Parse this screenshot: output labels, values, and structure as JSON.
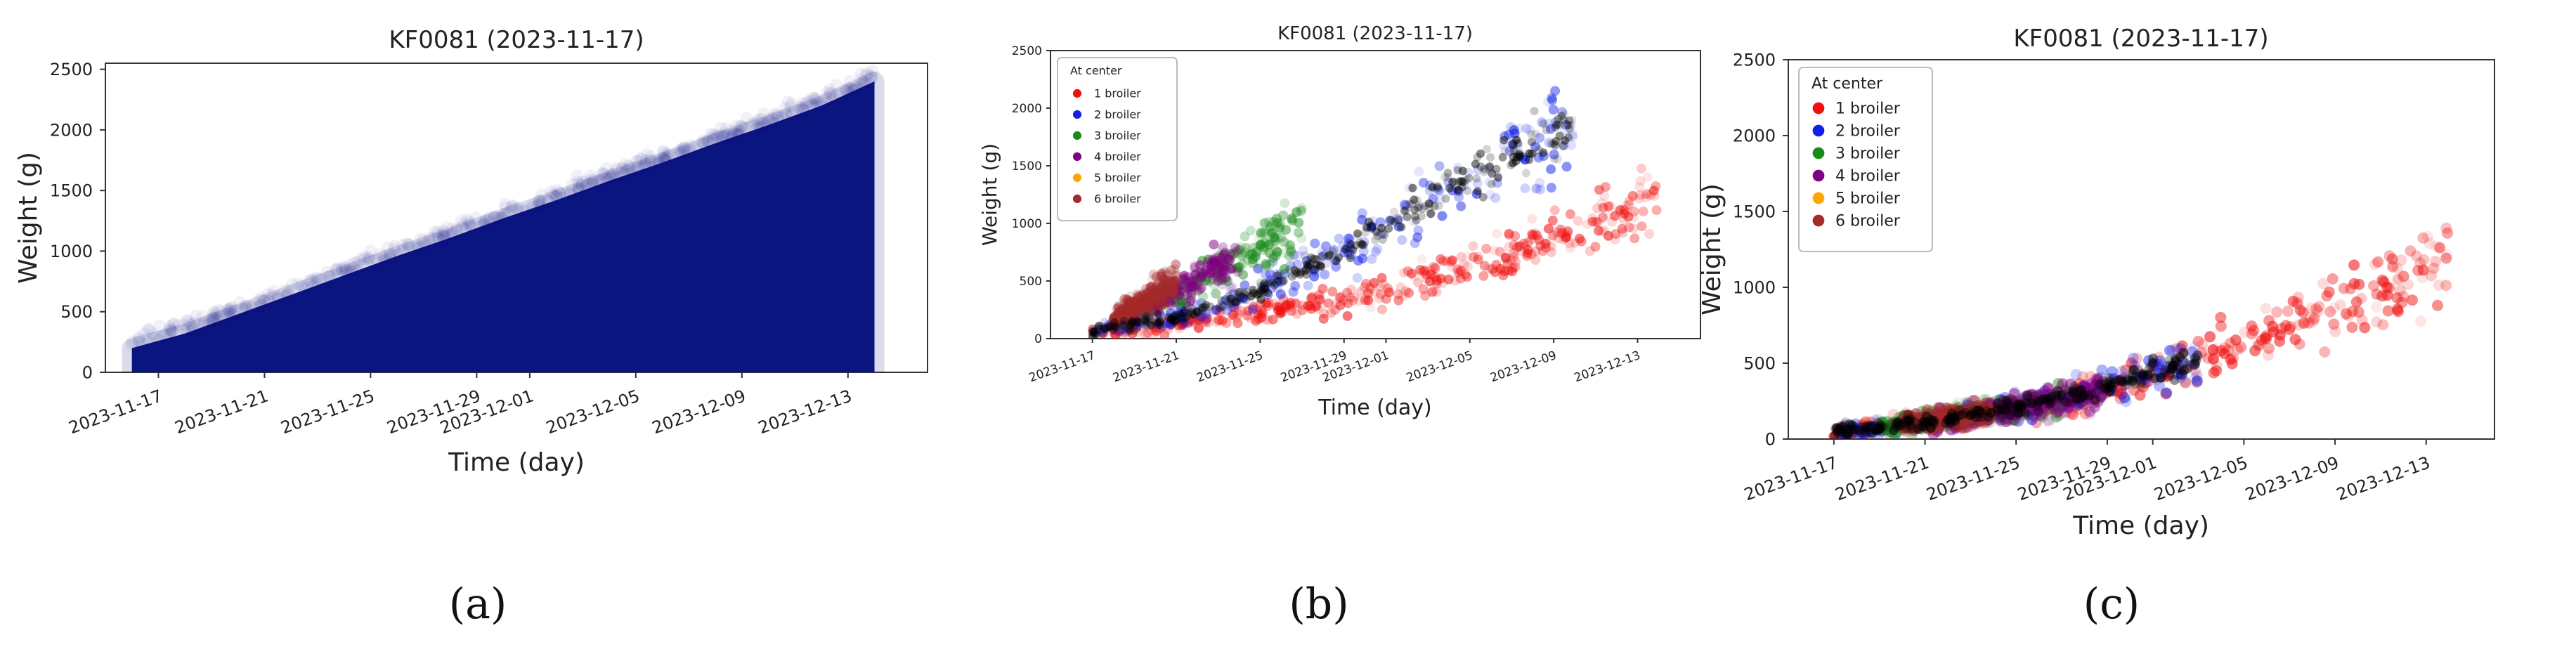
{
  "figure_caption_labels": [
    "(a)",
    "(b)",
    "(c)"
  ],
  "colors": {
    "navy": "#0a1580",
    "red": "#f01010",
    "blue": "#1020e8",
    "green": "#1a8a1a",
    "purple": "#800080",
    "orange": "#ffa500",
    "brown": "#a52a2a",
    "black": "#000000"
  },
  "chart_data": [
    {
      "id": "a",
      "type": "scatter",
      "title": "KF0081 (2023-11-17)",
      "xlabel": "Time (day)",
      "ylabel": "Weight (g)",
      "x_ticks": [
        "2023-11-17",
        "2023-11-21",
        "2023-11-25",
        "2023-11-29",
        "2023-12-01",
        "2023-12-05",
        "2023-12-09",
        "2023-12-13"
      ],
      "y_ticks": [
        "0",
        "500",
        "1000",
        "1500",
        "2000",
        "2500"
      ],
      "ylim": [
        0,
        2550
      ],
      "xlim": [
        "2023-11-15",
        "2023-12-16"
      ],
      "legend": null,
      "grid": false,
      "series": [
        {
          "color": "navy",
          "x": [
            "2023-11-16",
            "2023-11-18",
            "2023-11-20",
            "2023-11-22",
            "2023-11-24",
            "2023-11-26",
            "2023-11-28",
            "2023-11-30",
            "2023-12-02",
            "2023-12-04",
            "2023-12-06",
            "2023-12-08",
            "2023-12-10",
            "2023-12-12",
            "2023-12-14"
          ],
          "upper": [
            200,
            320,
            480,
            640,
            800,
            960,
            1110,
            1270,
            1420,
            1580,
            1730,
            1890,
            2040,
            2200,
            2400
          ],
          "lower": [
            0,
            0,
            0,
            0,
            0,
            0,
            0,
            0,
            0,
            0,
            0,
            0,
            0,
            0,
            0
          ]
        }
      ]
    },
    {
      "id": "b",
      "type": "scatter",
      "title": "KF0081 (2023-11-17)",
      "xlabel": "Time (day)",
      "ylabel": "Weight (g)",
      "x_ticks": [
        "2023-11-17",
        "2023-11-21",
        "2023-11-25",
        "2023-11-29",
        "2023-12-01",
        "2023-12-05",
        "2023-12-09",
        "2023-12-13"
      ],
      "y_ticks": [
        "0",
        "500",
        "1000",
        "1500",
        "2000",
        "2500"
      ],
      "ylim": [
        0,
        2500
      ],
      "xlim": [
        "2023-11-15",
        "2023-12-16"
      ],
      "legend_title": "At center",
      "legend_position": "top-left",
      "grid": false,
      "series": [
        {
          "name": "1 broiler",
          "color": "red",
          "x": [
            "2023-11-17",
            "2023-11-21",
            "2023-11-25",
            "2023-11-29",
            "2023-12-03",
            "2023-12-07",
            "2023-12-11",
            "2023-12-14"
          ],
          "y": [
            60,
            130,
            220,
            340,
            520,
            740,
            1000,
            1250
          ]
        },
        {
          "name": "2 broiler",
          "color": "blue",
          "x": [
            "2023-11-17",
            "2023-11-21",
            "2023-11-25",
            "2023-11-29",
            "2023-12-03",
            "2023-12-07",
            "2023-12-10"
          ],
          "y": [
            60,
            180,
            420,
            760,
            1200,
            1600,
            1850
          ]
        },
        {
          "name": "3 broiler",
          "color": "green",
          "x": [
            "2023-11-18",
            "2023-11-21",
            "2023-11-24",
            "2023-11-27"
          ],
          "y": [
            120,
            380,
            700,
            1000
          ]
        },
        {
          "name": "4 broiler",
          "color": "purple",
          "x": [
            "2023-11-18",
            "2023-11-21",
            "2023-11-24"
          ],
          "y": [
            150,
            420,
            700
          ]
        },
        {
          "name": "5 broiler",
          "color": "orange",
          "x": [],
          "y": []
        },
        {
          "name": "6 broiler",
          "color": "brown",
          "x": [
            "2023-11-18",
            "2023-11-21"
          ],
          "y": [
            180,
            500
          ]
        }
      ]
    },
    {
      "id": "c",
      "type": "scatter",
      "title": "KF0081 (2023-11-17)",
      "xlabel": "Time (day)",
      "ylabel": "Weight (g)",
      "x_ticks": [
        "2023-11-17",
        "2023-11-21",
        "2023-11-25",
        "2023-11-29",
        "2023-12-01",
        "2023-12-05",
        "2023-12-09",
        "2023-12-13"
      ],
      "y_ticks": [
        "0",
        "500",
        "1000",
        "1500",
        "2000",
        "2500"
      ],
      "ylim": [
        0,
        2500
      ],
      "xlim": [
        "2023-11-15",
        "2023-12-16"
      ],
      "legend_title": "At center",
      "legend_position": "top-left",
      "grid": false,
      "series": [
        {
          "name": "1 broiler",
          "color": "red",
          "x": [
            "2023-11-17",
            "2023-11-21",
            "2023-11-25",
            "2023-11-29",
            "2023-12-03",
            "2023-12-07",
            "2023-12-11",
            "2023-12-14"
          ],
          "y": [
            50,
            110,
            200,
            320,
            520,
            760,
            1000,
            1250
          ]
        },
        {
          "name": "2 broiler",
          "color": "blue",
          "x": [
            "2023-11-17",
            "2023-11-21",
            "2023-11-25",
            "2023-11-29",
            "2023-12-03"
          ],
          "y": [
            50,
            110,
            210,
            340,
            520
          ]
        },
        {
          "name": "3 broiler",
          "color": "green",
          "x": [
            "2023-11-19",
            "2023-11-23",
            "2023-11-27"
          ],
          "y": [
            80,
            160,
            260
          ]
        },
        {
          "name": "4 broiler",
          "color": "purple",
          "x": [
            "2023-11-21",
            "2023-11-25",
            "2023-11-29"
          ],
          "y": [
            110,
            200,
            320
          ]
        },
        {
          "name": "5 broiler",
          "color": "orange",
          "x": [],
          "y": []
        },
        {
          "name": "6 broiler",
          "color": "brown",
          "x": [
            "2023-11-20",
            "2023-11-24"
          ],
          "y": [
            100,
            180
          ]
        }
      ]
    }
  ]
}
